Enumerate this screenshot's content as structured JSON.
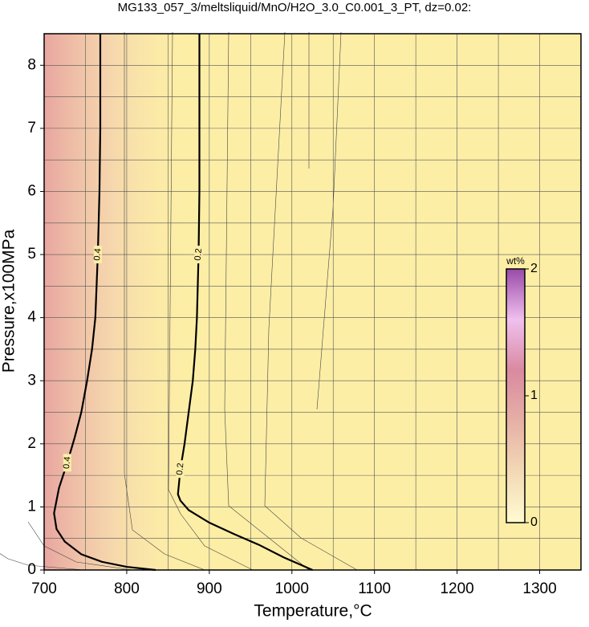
{
  "chart_data": {
    "type": "contour",
    "title": "MG133_057_3/meltsliquid/MnO/H2O_3.0_C0.001_3_PT, dz=0.02:",
    "x_label": "Temperature,°C",
    "y_label": "Pressure,x100MPa",
    "xlim": [
      700,
      1350
    ],
    "ylim": [
      0,
      8.5
    ],
    "xticks": [
      700,
      800,
      900,
      1000,
      1100,
      1200,
      1300
    ],
    "yticks": [
      0,
      1,
      2,
      3,
      4,
      5,
      6,
      7,
      8
    ],
    "xgrid": [
      750,
      800,
      850,
      900,
      950,
      1000,
      1050,
      1100,
      1150,
      1200,
      1250,
      1300
    ],
    "ygrid": [
      0.5,
      1,
      1.5,
      2,
      2.5,
      3,
      3.5,
      4,
      4.5,
      5,
      5.5,
      6,
      6.5,
      7,
      7.5,
      8
    ],
    "background": "#fdeea6",
    "contours": [
      {
        "level": 0.2,
        "x": [
          1025,
          990,
          960,
          930,
          900,
          875,
          865,
          862,
          865,
          870,
          875,
          880,
          883,
          885,
          887,
          888,
          888,
          888
        ],
        "y": [
          0,
          0.2,
          0.4,
          0.57,
          0.75,
          0.95,
          1.1,
          1.2,
          1.6,
          2,
          2.5,
          3,
          3.5,
          4,
          5,
          6,
          7,
          8.5
        ]
      },
      {
        "level": 0.4,
        "x": [
          835,
          800,
          770,
          745,
          725,
          715,
          712,
          718,
          728,
          737,
          745,
          752,
          758,
          762,
          765,
          767,
          768,
          768
        ],
        "y": [
          0,
          0.05,
          0.13,
          0.25,
          0.45,
          0.65,
          0.9,
          1.3,
          1.7,
          2.1,
          2.5,
          3,
          3.5,
          4,
          5,
          6,
          7,
          8.5
        ]
      }
    ],
    "colorbar": {
      "label": "wt%",
      "lim": [
        0,
        2
      ],
      "ticks": [
        0,
        1,
        2
      ],
      "colors": [
        "#fffbd2",
        "#f3d9b5",
        "#e6b0a6",
        "#d98aa0",
        "#f0c0ef",
        "#9a4aa8"
      ]
    }
  }
}
